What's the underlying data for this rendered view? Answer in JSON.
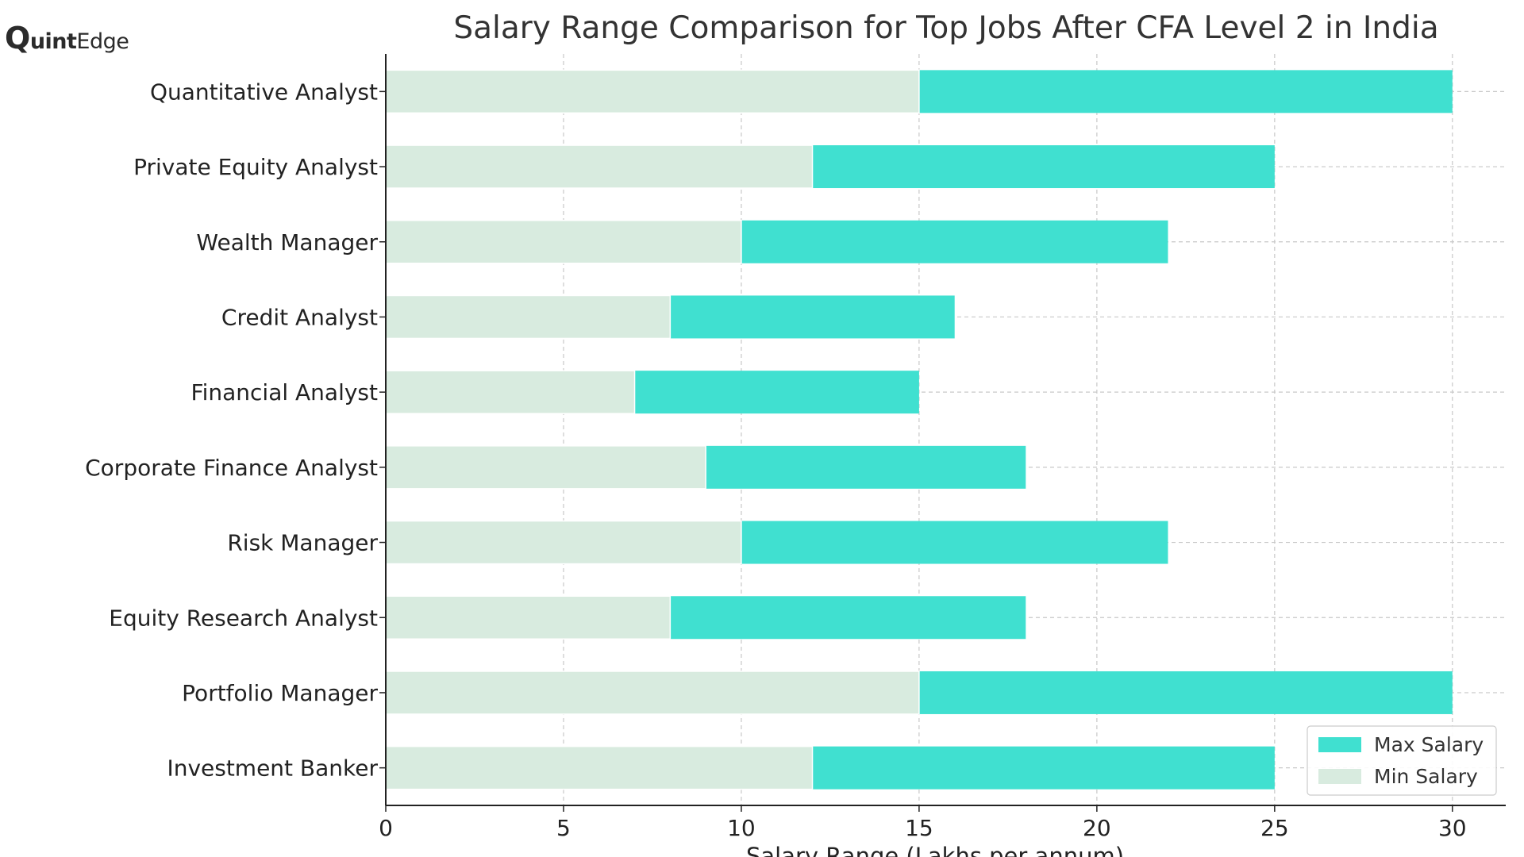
{
  "logo": {
    "brand_q": "Q",
    "brand_bold": "uint",
    "brand_rest": "Edge"
  },
  "chart_data": {
    "type": "bar",
    "orientation": "horizontal",
    "title": "Salary Range Comparison for Top Jobs After CFA Level 2 in India",
    "xlabel": "Salary Range (Lakhs per annum)",
    "ylabel": "",
    "xlim": [
      0,
      31.5
    ],
    "xticks": [
      0,
      5,
      10,
      15,
      20,
      25,
      30
    ],
    "categories": [
      "Quantitative Analyst",
      "Private Equity Analyst",
      "Wealth Manager",
      "Credit Analyst",
      "Financial Analyst",
      "Corporate Finance Analyst",
      "Risk Manager",
      "Equity Research Analyst",
      "Portfolio Manager",
      "Investment Banker"
    ],
    "series": [
      {
        "name": "Max Salary",
        "color": "#40e0d0",
        "values": [
          30,
          25,
          22,
          16,
          15,
          18,
          22,
          18,
          30,
          25
        ]
      },
      {
        "name": "Min Salary",
        "color": "#d8ebdf",
        "values": [
          15,
          12,
          10,
          8,
          7,
          9,
          10,
          8,
          15,
          12
        ]
      }
    ],
    "grid": true,
    "legend_position": "bottom-right"
  }
}
